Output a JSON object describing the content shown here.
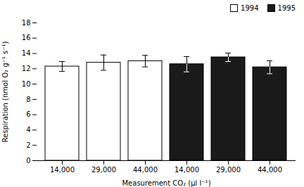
{
  "chart_data": {
    "type": "bar",
    "categories": [
      "14,000",
      "29,000",
      "44,000",
      "14,000",
      "29,000",
      "44,000"
    ],
    "xlabel": "Measurement CO₂ (µl l⁻¹)",
    "ylabel": "Respiration (nmol O₂ g⁻¹ s⁻¹)",
    "ylim": [
      0,
      18
    ],
    "yticks": [
      0,
      2,
      4,
      6,
      8,
      10,
      12,
      14,
      16,
      18
    ],
    "legend": "upper right",
    "series": [
      {
        "name": "1994",
        "color": "#ffffff",
        "values": [
          12.3,
          12.8,
          13.0,
          null,
          null,
          null
        ],
        "errors": [
          0.65,
          1.0,
          0.75,
          null,
          null,
          null
        ]
      },
      {
        "name": "1995",
        "color": "#1a1a1a",
        "values": [
          null,
          null,
          null,
          12.6,
          13.5,
          12.2
        ],
        "errors": [
          null,
          null,
          null,
          1.0,
          0.55,
          0.85
        ]
      }
    ]
  }
}
